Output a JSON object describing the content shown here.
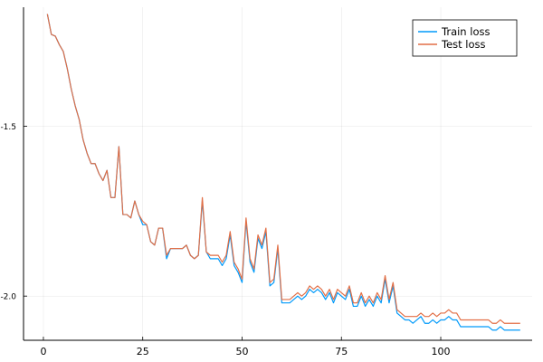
{
  "chart_data": {
    "type": "line",
    "title": "",
    "xlabel": "",
    "ylabel": "",
    "xlim": [
      -5,
      123
    ],
    "ylim": [
      -2.13,
      -1.15
    ],
    "xticks": [
      0,
      25,
      50,
      75,
      100
    ],
    "xtick_labels": [
      "0",
      "25",
      "50",
      "75",
      "100"
    ],
    "yticks": [
      -1.5,
      -2.0
    ],
    "ytick_labels": [
      "-1.5",
      "-2.0"
    ],
    "grid": true,
    "legend_position": "top-right",
    "x_start": 1,
    "series": [
      {
        "name": "Train loss",
        "color": "#009AFA",
        "values": [
          -1.17,
          -1.23,
          -1.235,
          -1.26,
          -1.28,
          -1.33,
          -1.39,
          -1.44,
          -1.48,
          -1.54,
          -1.58,
          -1.61,
          -1.61,
          -1.64,
          -1.66,
          -1.63,
          -1.71,
          -1.71,
          -1.56,
          -1.76,
          -1.76,
          -1.77,
          -1.72,
          -1.76,
          -1.79,
          -1.79,
          -1.84,
          -1.85,
          -1.8,
          -1.8,
          -1.89,
          -1.86,
          -1.86,
          -1.86,
          -1.86,
          -1.85,
          -1.88,
          -1.89,
          -1.88,
          -1.72,
          -1.87,
          -1.89,
          -1.89,
          -1.89,
          -1.91,
          -1.89,
          -1.82,
          -1.91,
          -1.93,
          -1.96,
          -1.78,
          -1.9,
          -1.93,
          -1.83,
          -1.86,
          -1.81,
          -1.97,
          -1.96,
          -1.86,
          -2.02,
          -2.02,
          -2.02,
          -2.01,
          -2.0,
          -2.01,
          -2.0,
          -1.98,
          -1.99,
          -1.98,
          -1.99,
          -2.01,
          -1.99,
          -2.02,
          -1.99,
          -2.0,
          -2.01,
          -1.98,
          -2.03,
          -2.03,
          -2.0,
          -2.03,
          -2.01,
          -2.03,
          -2.0,
          -2.02,
          -1.95,
          -2.02,
          -1.97,
          -2.05,
          -2.06,
          -2.07,
          -2.07,
          -2.08,
          -2.07,
          -2.06,
          -2.08,
          -2.08,
          -2.07,
          -2.08,
          -2.07,
          -2.07,
          -2.06,
          -2.07,
          -2.07,
          -2.09,
          -2.09,
          -2.09,
          -2.09,
          -2.09,
          -2.09,
          -2.09,
          -2.09,
          -2.1,
          -2.1,
          -2.09,
          -2.1,
          -2.1,
          -2.1,
          -2.1,
          -2.1
        ]
      },
      {
        "name": "Test loss",
        "color": "#E26F46",
        "values": [
          -1.17,
          -1.23,
          -1.235,
          -1.26,
          -1.28,
          -1.33,
          -1.39,
          -1.44,
          -1.48,
          -1.54,
          -1.58,
          -1.61,
          -1.61,
          -1.64,
          -1.66,
          -1.63,
          -1.71,
          -1.71,
          -1.56,
          -1.76,
          -1.76,
          -1.77,
          -1.72,
          -1.76,
          -1.78,
          -1.79,
          -1.84,
          -1.85,
          -1.8,
          -1.8,
          -1.88,
          -1.86,
          -1.86,
          -1.86,
          -1.86,
          -1.85,
          -1.88,
          -1.89,
          -1.88,
          -1.71,
          -1.87,
          -1.88,
          -1.88,
          -1.88,
          -1.9,
          -1.88,
          -1.81,
          -1.9,
          -1.92,
          -1.95,
          -1.77,
          -1.89,
          -1.92,
          -1.82,
          -1.85,
          -1.8,
          -1.96,
          -1.95,
          -1.85,
          -2.01,
          -2.01,
          -2.01,
          -2.0,
          -1.99,
          -2.0,
          -1.99,
          -1.97,
          -1.98,
          -1.97,
          -1.98,
          -2.0,
          -1.98,
          -2.01,
          -1.98,
          -1.99,
          -2.0,
          -1.97,
          -2.02,
          -2.02,
          -1.99,
          -2.02,
          -2.0,
          -2.02,
          -1.99,
          -2.01,
          -1.94,
          -2.01,
          -1.96,
          -2.04,
          -2.05,
          -2.06,
          -2.06,
          -2.06,
          -2.06,
          -2.05,
          -2.06,
          -2.06,
          -2.05,
          -2.06,
          -2.05,
          -2.05,
          -2.04,
          -2.05,
          -2.05,
          -2.07,
          -2.07,
          -2.07,
          -2.07,
          -2.07,
          -2.07,
          -2.07,
          -2.07,
          -2.08,
          -2.08,
          -2.07,
          -2.08,
          -2.08,
          -2.08,
          -2.08,
          -2.08
        ]
      }
    ]
  }
}
